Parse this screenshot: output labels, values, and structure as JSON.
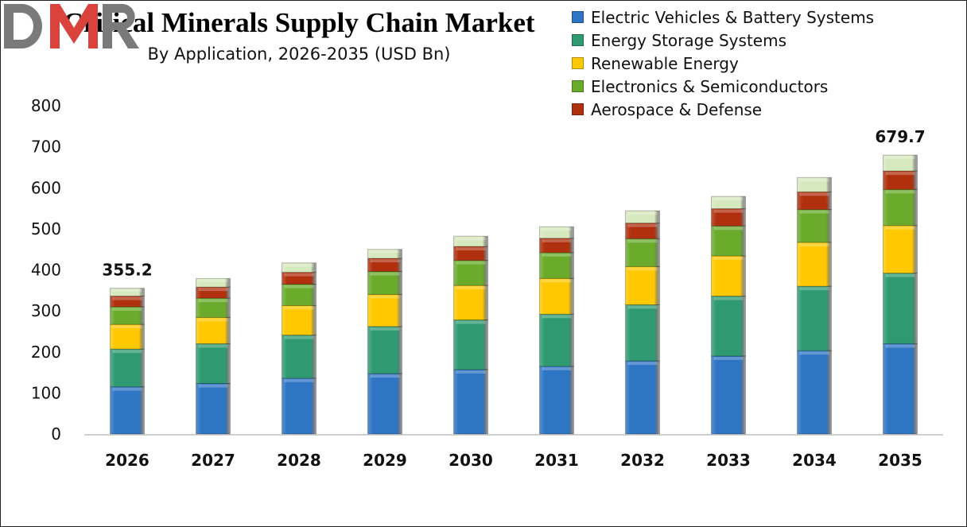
{
  "chart_data": {
    "type": "bar",
    "stacked": true,
    "title": "Critical Minerals Supply Chain Market",
    "subtitle": "By Application, 2026-2035 (USD Bn)",
    "xlabel": "",
    "ylabel": "",
    "ylim": [
      0,
      800
    ],
    "yticks": [
      0,
      100,
      200,
      300,
      400,
      500,
      600,
      700,
      800
    ],
    "grid": false,
    "legend_position": "top-right",
    "categories": [
      "2026",
      "2027",
      "2028",
      "2029",
      "2030",
      "2031",
      "2032",
      "2033",
      "2034",
      "2035"
    ],
    "series": [
      {
        "name": "Electric Vehicles & Battery Systems",
        "color": "#2e75c4",
        "values": [
          115,
          123,
          136,
          147,
          157,
          165,
          178,
          190,
          203,
          220
        ]
      },
      {
        "name": "Energy Storage Systems",
        "color": "#2f9a72",
        "values": [
          92,
          97,
          105,
          115,
          121,
          127,
          137,
          146,
          157,
          172
        ]
      },
      {
        "name": "Renewable Energy",
        "color": "#ffc800",
        "values": [
          60,
          64,
          72,
          78,
          84,
          87,
          93,
          98,
          107,
          116
        ]
      },
      {
        "name": "Electronics & Semiconductors",
        "color": "#6aab2c",
        "values": [
          43,
          47,
          52,
          56,
          61,
          63,
          68,
          73,
          80,
          88
        ]
      },
      {
        "name": "Aerospace & Defense",
        "color": "#b0300e",
        "values": [
          26,
          27,
          29,
          32,
          34,
          35,
          38,
          42,
          43,
          45
        ]
      },
      {
        "color": "#d6e8bd",
        "values": [
          19.2,
          21,
          23,
          22,
          25,
          28,
          30,
          30,
          35,
          38.7
        ]
      }
    ],
    "data_labels": [
      {
        "category": "2026",
        "text": "355.2"
      },
      {
        "category": "2035",
        "text": "679.7"
      }
    ]
  },
  "logo": {
    "text": "DMR",
    "colors": [
      "#7a7a7a",
      "#d9433b"
    ]
  }
}
